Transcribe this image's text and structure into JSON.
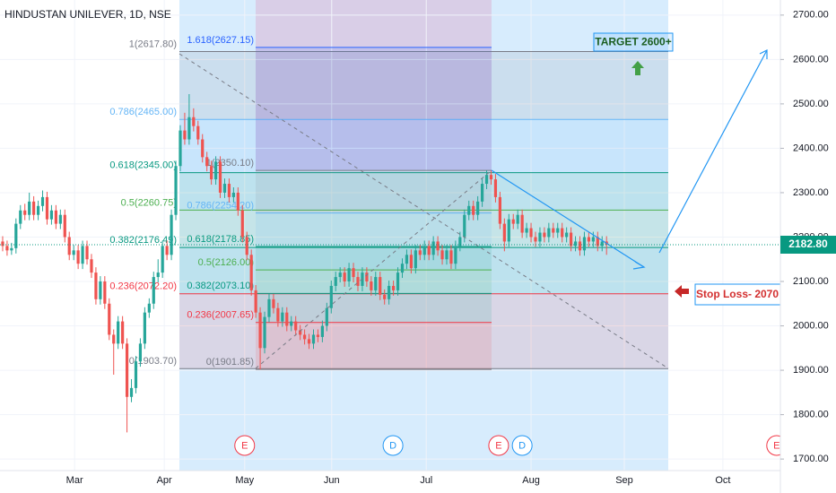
{
  "chart_data": {
    "type": "candlestick",
    "title": "HINDUSTAN UNILEVER, 1D, NSE",
    "up_color": "#26a69a",
    "down_color": "#ef5350",
    "grid": true,
    "xlim": [
      -0.6,
      175.15
    ],
    "ylim": [
      1674,
      2734
    ],
    "yticks": [
      {
        "value": 1700,
        "label": "1700.00"
      },
      {
        "value": 1800,
        "label": "1800.00"
      },
      {
        "value": 1900,
        "label": "1900.00"
      },
      {
        "value": 2000,
        "label": "2000.00"
      },
      {
        "value": 2100,
        "label": "2100.00"
      },
      {
        "value": 2200,
        "label": "2200.00"
      },
      {
        "value": 2300,
        "label": "2300.00"
      },
      {
        "value": 2400,
        "label": "2400.00"
      },
      {
        "value": 2500,
        "label": "2500.00"
      },
      {
        "value": 2600,
        "label": "2600.00"
      },
      {
        "value": 2700,
        "label": "2700.00"
      }
    ],
    "xticks": [
      {
        "value": 16.2,
        "label": "Mar"
      },
      {
        "value": 36.4,
        "label": "Apr"
      },
      {
        "value": 54.5,
        "label": "May"
      },
      {
        "value": 74.1,
        "label": "Jun"
      },
      {
        "value": 95.4,
        "label": "Jul"
      },
      {
        "value": 119,
        "label": "Aug"
      },
      {
        "value": 140,
        "label": "Sep"
      },
      {
        "value": 162.2,
        "label": "Oct"
      }
    ],
    "last_price": {
      "value": 2182.8,
      "label": "2182.80",
      "color": "#089981"
    },
    "open": [
      2190,
      2180,
      2170,
      2175,
      2230,
      2260,
      2250,
      2280,
      2250,
      2270,
      2290,
      2240,
      2260,
      2230,
      2250,
      2200,
      2160,
      2170,
      2140,
      2180,
      2150,
      2120,
      2060,
      2100,
      2050,
      1980,
      1960,
      2010,
      1960,
      1840,
      1860,
      1920,
      1960,
      2030,
      2050,
      2110,
      2120,
      2180,
      2160,
      2250,
      2360,
      2440,
      2420,
      2470,
      2450,
      2420,
      2380,
      2360,
      2330,
      2370,
      2300,
      2320,
      2290,
      2300,
      2260,
      2200,
      2160,
      2080,
      2030,
      1950,
      2020,
      2060,
      2040,
      2010,
      2030,
      2000,
      2010,
      1990,
      1980,
      1970,
      1960,
      1980,
      1975,
      2000,
      2040,
      2090,
      2110,
      2120,
      2100,
      2130,
      2110,
      2090,
      2120,
      2100,
      2080,
      2110,
      2070,
      2060,
      2090,
      2080,
      2120,
      2140,
      2160,
      2130,
      2170,
      2160,
      2180,
      2160,
      2190,
      2170,
      2150,
      2170,
      2140,
      2180,
      2200,
      2250,
      2270,
      2250,
      2280,
      2320,
      2340,
      2330,
      2290,
      2230,
      2190,
      2240,
      2230,
      2250,
      2210,
      2220,
      2200,
      2190,
      2210,
      2200,
      2220,
      2210,
      2220,
      2200,
      2210,
      2180,
      2190,
      2170,
      2200,
      2190,
      2200,
      2180,
      2190
    ],
    "high": [
      2202,
      2192,
      2187,
      2242,
      2272,
      2275,
      2300,
      2292,
      2282,
      2305,
      2302,
      2272,
      2272,
      2262,
      2262,
      2212,
      2182,
      2182,
      2192,
      2192,
      2162,
      2132,
      2112,
      2112,
      2062,
      1992,
      2022,
      2022,
      1972,
      1880,
      1932,
      1972,
      2042,
      2062,
      2122,
      2150,
      2192,
      2192,
      2262,
      2372,
      2452,
      2480,
      2522,
      2490,
      2462,
      2432,
      2392,
      2372,
      2382,
      2382,
      2332,
      2332,
      2312,
      2312,
      2272,
      2212,
      2172,
      2092,
      2042,
      2032,
      2072,
      2072,
      2052,
      2042,
      2042,
      2022,
      2022,
      2002,
      1992,
      1982,
      1992,
      1992,
      2012,
      2052,
      2102,
      2122,
      2132,
      2132,
      2142,
      2142,
      2122,
      2132,
      2132,
      2112,
      2122,
      2122,
      2082,
      2102,
      2102,
      2132,
      2152,
      2172,
      2172,
      2182,
      2182,
      2192,
      2192,
      2202,
      2202,
      2182,
      2182,
      2182,
      2192,
      2212,
      2262,
      2282,
      2282,
      2292,
      2332,
      2350,
      2350,
      2342,
      2302,
      2242,
      2252,
      2252,
      2262,
      2262,
      2232,
      2232,
      2212,
      2222,
      2222,
      2232,
      2232,
      2232,
      2232,
      2222,
      2222,
      2202,
      2202,
      2212,
      2212,
      2212,
      2212,
      2202,
      2202
    ],
    "low": [
      2168,
      2158,
      2160,
      2163,
      2218,
      2238,
      2238,
      2238,
      2238,
      2258,
      2228,
      2228,
      2218,
      2218,
      2188,
      2148,
      2148,
      2128,
      2128,
      2138,
      2108,
      2048,
      2048,
      2038,
      1968,
      1890,
      1948,
      1948,
      1760,
      1828,
      1848,
      1908,
      1948,
      2018,
      2038,
      2098,
      2108,
      2148,
      2148,
      2238,
      2348,
      2408,
      2408,
      2438,
      2408,
      2368,
      2348,
      2318,
      2318,
      2288,
      2288,
      2278,
      2278,
      2248,
      2188,
      2148,
      2068,
      2018,
      1902,
      1938,
      2008,
      2028,
      1998,
      1998,
      1988,
      1988,
      1978,
      1968,
      1958,
      1948,
      1948,
      1963,
      1963,
      1988,
      2028,
      2078,
      2098,
      2088,
      2088,
      2098,
      2078,
      2078,
      2088,
      2068,
      2068,
      2058,
      2048,
      2048,
      2068,
      2068,
      2108,
      2128,
      2118,
      2118,
      2148,
      2148,
      2148,
      2148,
      2158,
      2138,
      2138,
      2128,
      2128,
      2168,
      2188,
      2238,
      2238,
      2238,
      2268,
      2308,
      2318,
      2278,
      2218,
      2168,
      2178,
      2218,
      2218,
      2198,
      2198,
      2188,
      2178,
      2178,
      2188,
      2188,
      2198,
      2198,
      2188,
      2188,
      2168,
      2168,
      2158,
      2158,
      2178,
      2178,
      2168,
      2168,
      2160
    ],
    "close": [
      2180,
      2170,
      2175,
      2230,
      2260,
      2250,
      2280,
      2250,
      2270,
      2290,
      2240,
      2260,
      2230,
      2250,
      2200,
      2160,
      2170,
      2140,
      2180,
      2150,
      2120,
      2060,
      2100,
      2050,
      1980,
      1960,
      2010,
      1960,
      1840,
      1860,
      1920,
      1960,
      2030,
      2050,
      2110,
      2120,
      2180,
      2160,
      2250,
      2360,
      2440,
      2420,
      2470,
      2450,
      2420,
      2380,
      2360,
      2330,
      2370,
      2300,
      2320,
      2290,
      2300,
      2260,
      2200,
      2160,
      2080,
      2030,
      1950,
      2020,
      2060,
      2040,
      2010,
      2030,
      2000,
      2010,
      1990,
      1980,
      1970,
      1960,
      1980,
      1975,
      2000,
      2040,
      2090,
      2110,
      2120,
      2100,
      2130,
      2110,
      2090,
      2120,
      2100,
      2080,
      2110,
      2070,
      2060,
      2090,
      2080,
      2120,
      2140,
      2160,
      2130,
      2170,
      2160,
      2180,
      2160,
      2190,
      2170,
      2150,
      2170,
      2140,
      2180,
      2200,
      2250,
      2270,
      2250,
      2280,
      2320,
      2340,
      2330,
      2290,
      2230,
      2190,
      2240,
      2230,
      2250,
      2210,
      2220,
      2200,
      2190,
      2210,
      2200,
      2220,
      2210,
      2220,
      2200,
      2210,
      2180,
      2190,
      2170,
      2200,
      2190,
      2200,
      2180,
      2190,
      2182.8
    ],
    "fibs": [
      {
        "levels": [
          {
            "value": 2617.8,
            "label": "1(2617.80)",
            "color": "#787b86"
          },
          {
            "value": 2465,
            "label": "0.786(2465.00)",
            "color": "#64b5f6"
          },
          {
            "value": 2345,
            "label": "0.618(2345.00)",
            "color": "#089981"
          },
          {
            "value": 2260.75,
            "label": "0.5(2260.75)",
            "color": "#4caf50"
          },
          {
            "value": 2176.49,
            "label": "0.382(2176.49)",
            "color": "#089981"
          },
          {
            "value": 2072.2,
            "label": "0.236(2072.20)",
            "color": "#f23645"
          },
          {
            "value": 1903.7,
            "label": "0(1903.70)",
            "color": "#787b86"
          }
        ]
      },
      {
        "levels": [
          {
            "value": 2627.15,
            "label": "1.618(2627.15)",
            "color": "#2962ff"
          },
          {
            "value": 2350.1,
            "label": "1(2350.10)",
            "color": "#787b86"
          },
          {
            "value": 2254.2,
            "label": "0.786(2254.20)",
            "color": "#64b5f6"
          },
          {
            "value": 2178.85,
            "label": "0.618(2178.85)",
            "color": "#089981"
          },
          {
            "value": 2126,
            "label": "0.5(2126.00)",
            "color": "#4caf50"
          },
          {
            "value": 2073.1,
            "label": "0.382(2073.10)",
            "color": "#089981"
          },
          {
            "value": 2007.65,
            "label": "0.236(2007.65)",
            "color": "#f23645"
          },
          {
            "value": 1901.85,
            "label": "0(1901.85)",
            "color": "#787b86"
          }
        ]
      }
    ],
    "events": [
      {
        "label": "E",
        "x": 54.5,
        "color": "#f23645"
      },
      {
        "label": "D",
        "x": 87.9,
        "color": "#2196f3"
      },
      {
        "label": "E",
        "x": 111.7,
        "color": "#f23645"
      },
      {
        "label": "D",
        "x": 117,
        "color": "#2196f3"
      },
      {
        "label": "E",
        "x": 174.3,
        "color": "#f23645"
      }
    ],
    "annotations": {
      "target": "TARGET 2600+",
      "stop_loss": "Stop Loss- 2070"
    }
  }
}
